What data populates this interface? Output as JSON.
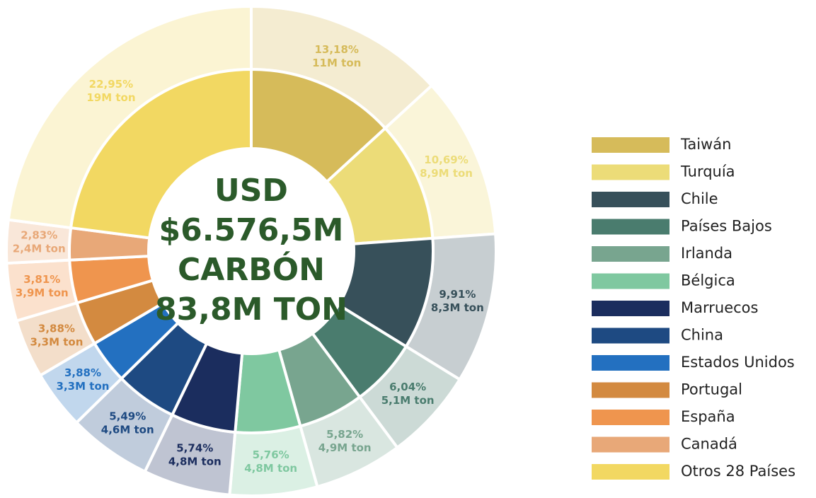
{
  "chart_data": {
    "type": "donut",
    "center_text": [
      "USD",
      "$6.576,5M",
      "CARBÓN",
      "83,8M TON"
    ],
    "categories": [
      "Taiwán",
      "Turquía",
      "Chile",
      "Países Bajos",
      "Irlanda",
      "Bélgica",
      "Marruecos",
      "China",
      "Estados Unidos",
      "Portugal",
      "España",
      "Canadá",
      "Otros 28 Países"
    ],
    "values": [
      13.18,
      10.69,
      9.91,
      6.04,
      5.82,
      5.76,
      5.74,
      5.49,
      3.88,
      3.88,
      3.81,
      2.83,
      22.95
    ],
    "value_labels": [
      "13,18%",
      "10,69%",
      "9,91%",
      "6,04%",
      "5,82%",
      "5,76%",
      "5,74%",
      "5,49%",
      "3,88%",
      "3,88%",
      "3,81%",
      "2,83%",
      "22,95%"
    ],
    "tons": [
      11,
      8.9,
      8.3,
      5.1,
      4.9,
      4.8,
      4.8,
      4.6,
      3.3,
      3.3,
      3.9,
      2.4,
      19
    ],
    "ton_labels": [
      "11M ton",
      "8,9M ton",
      "8,3M ton",
      "5,1M ton",
      "4,9M ton",
      "4,8M ton",
      "4,8M ton",
      "4,6M ton",
      "3,3M ton",
      "3,3M ton",
      "3,9M ton",
      "2,4M ton",
      "19M ton"
    ],
    "colors": [
      "#d6bb5a",
      "#ecdc78",
      "#37505a",
      "#4a7c6e",
      "#78a58f",
      "#7fc8a0",
      "#1b2d5e",
      "#1e4a82",
      "#2370c0",
      "#d38a40",
      "#ef954e",
      "#e8a878",
      "#f2d862"
    ],
    "legend": "right"
  }
}
